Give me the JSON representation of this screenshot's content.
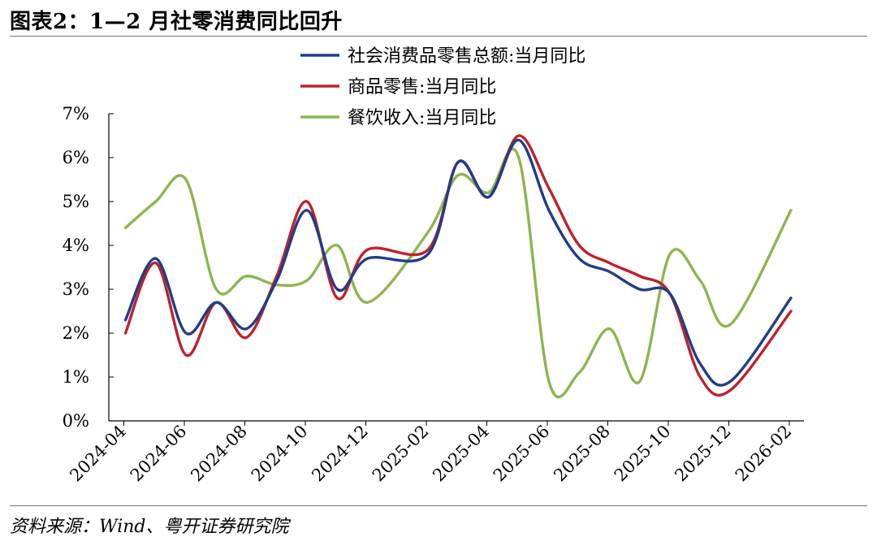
{
  "title": "图表2：1—2 月社零消费同比回升",
  "source": "资料来源：Wind、粤开证券研究院",
  "chart_data": {
    "type": "line",
    "title": "图表2：1—2 月社零消费同比回升",
    "xlabel": "",
    "ylabel": "",
    "ylim": [
      0,
      7
    ],
    "y_ticks": [
      "0%",
      "1%",
      "2%",
      "3%",
      "4%",
      "5%",
      "6%",
      "7%"
    ],
    "x_tick_labels": [
      "2024-04",
      "2024-06",
      "2024-08",
      "2024-10",
      "2024-12",
      "2025-02",
      "2025-04",
      "2025-06",
      "2025-08",
      "2025-10",
      "2025-12",
      "2026-02"
    ],
    "x": [
      "2024-04",
      "2024-05",
      "2024-06",
      "2024-07",
      "2024-08",
      "2024-09",
      "2024-10",
      "2024-11",
      "2024-12",
      "2025-01",
      "2025-02",
      "2025-03",
      "2025-04",
      "2025-05",
      "2025-06",
      "2025-07",
      "2025-08",
      "2025-09",
      "2025-10",
      "2025-11",
      "2025-12",
      "2026-01",
      "2026-02"
    ],
    "grid": false,
    "legend_position": "top-right",
    "series": [
      {
        "name": "社会消费品零售总额:当月同比",
        "color": "#1f3d8a",
        "values": [
          2.3,
          3.7,
          2.0,
          2.7,
          2.1,
          3.2,
          4.8,
          3.0,
          3.7,
          null,
          3.8,
          5.9,
          5.1,
          6.4,
          4.8,
          3.7,
          3.4,
          3.0,
          2.9,
          1.3,
          0.9,
          null,
          2.8
        ]
      },
      {
        "name": "商品零售:当月同比",
        "color": "#c0202a",
        "values": [
          2.0,
          3.6,
          1.5,
          2.7,
          1.9,
          3.3,
          5.0,
          2.8,
          3.9,
          null,
          3.9,
          5.9,
          5.1,
          6.5,
          5.3,
          4.0,
          3.6,
          3.3,
          2.9,
          1.0,
          0.7,
          null,
          2.5
        ]
      },
      {
        "name": "餐饮收入:当月同比",
        "color": "#8db550",
        "values": [
          4.4,
          5.0,
          5.5,
          3.0,
          3.3,
          3.1,
          3.2,
          4.0,
          2.7,
          null,
          4.3,
          5.6,
          5.2,
          6.0,
          0.9,
          1.1,
          2.1,
          0.9,
          3.8,
          3.2,
          2.2,
          null,
          4.8
        ]
      }
    ]
  }
}
